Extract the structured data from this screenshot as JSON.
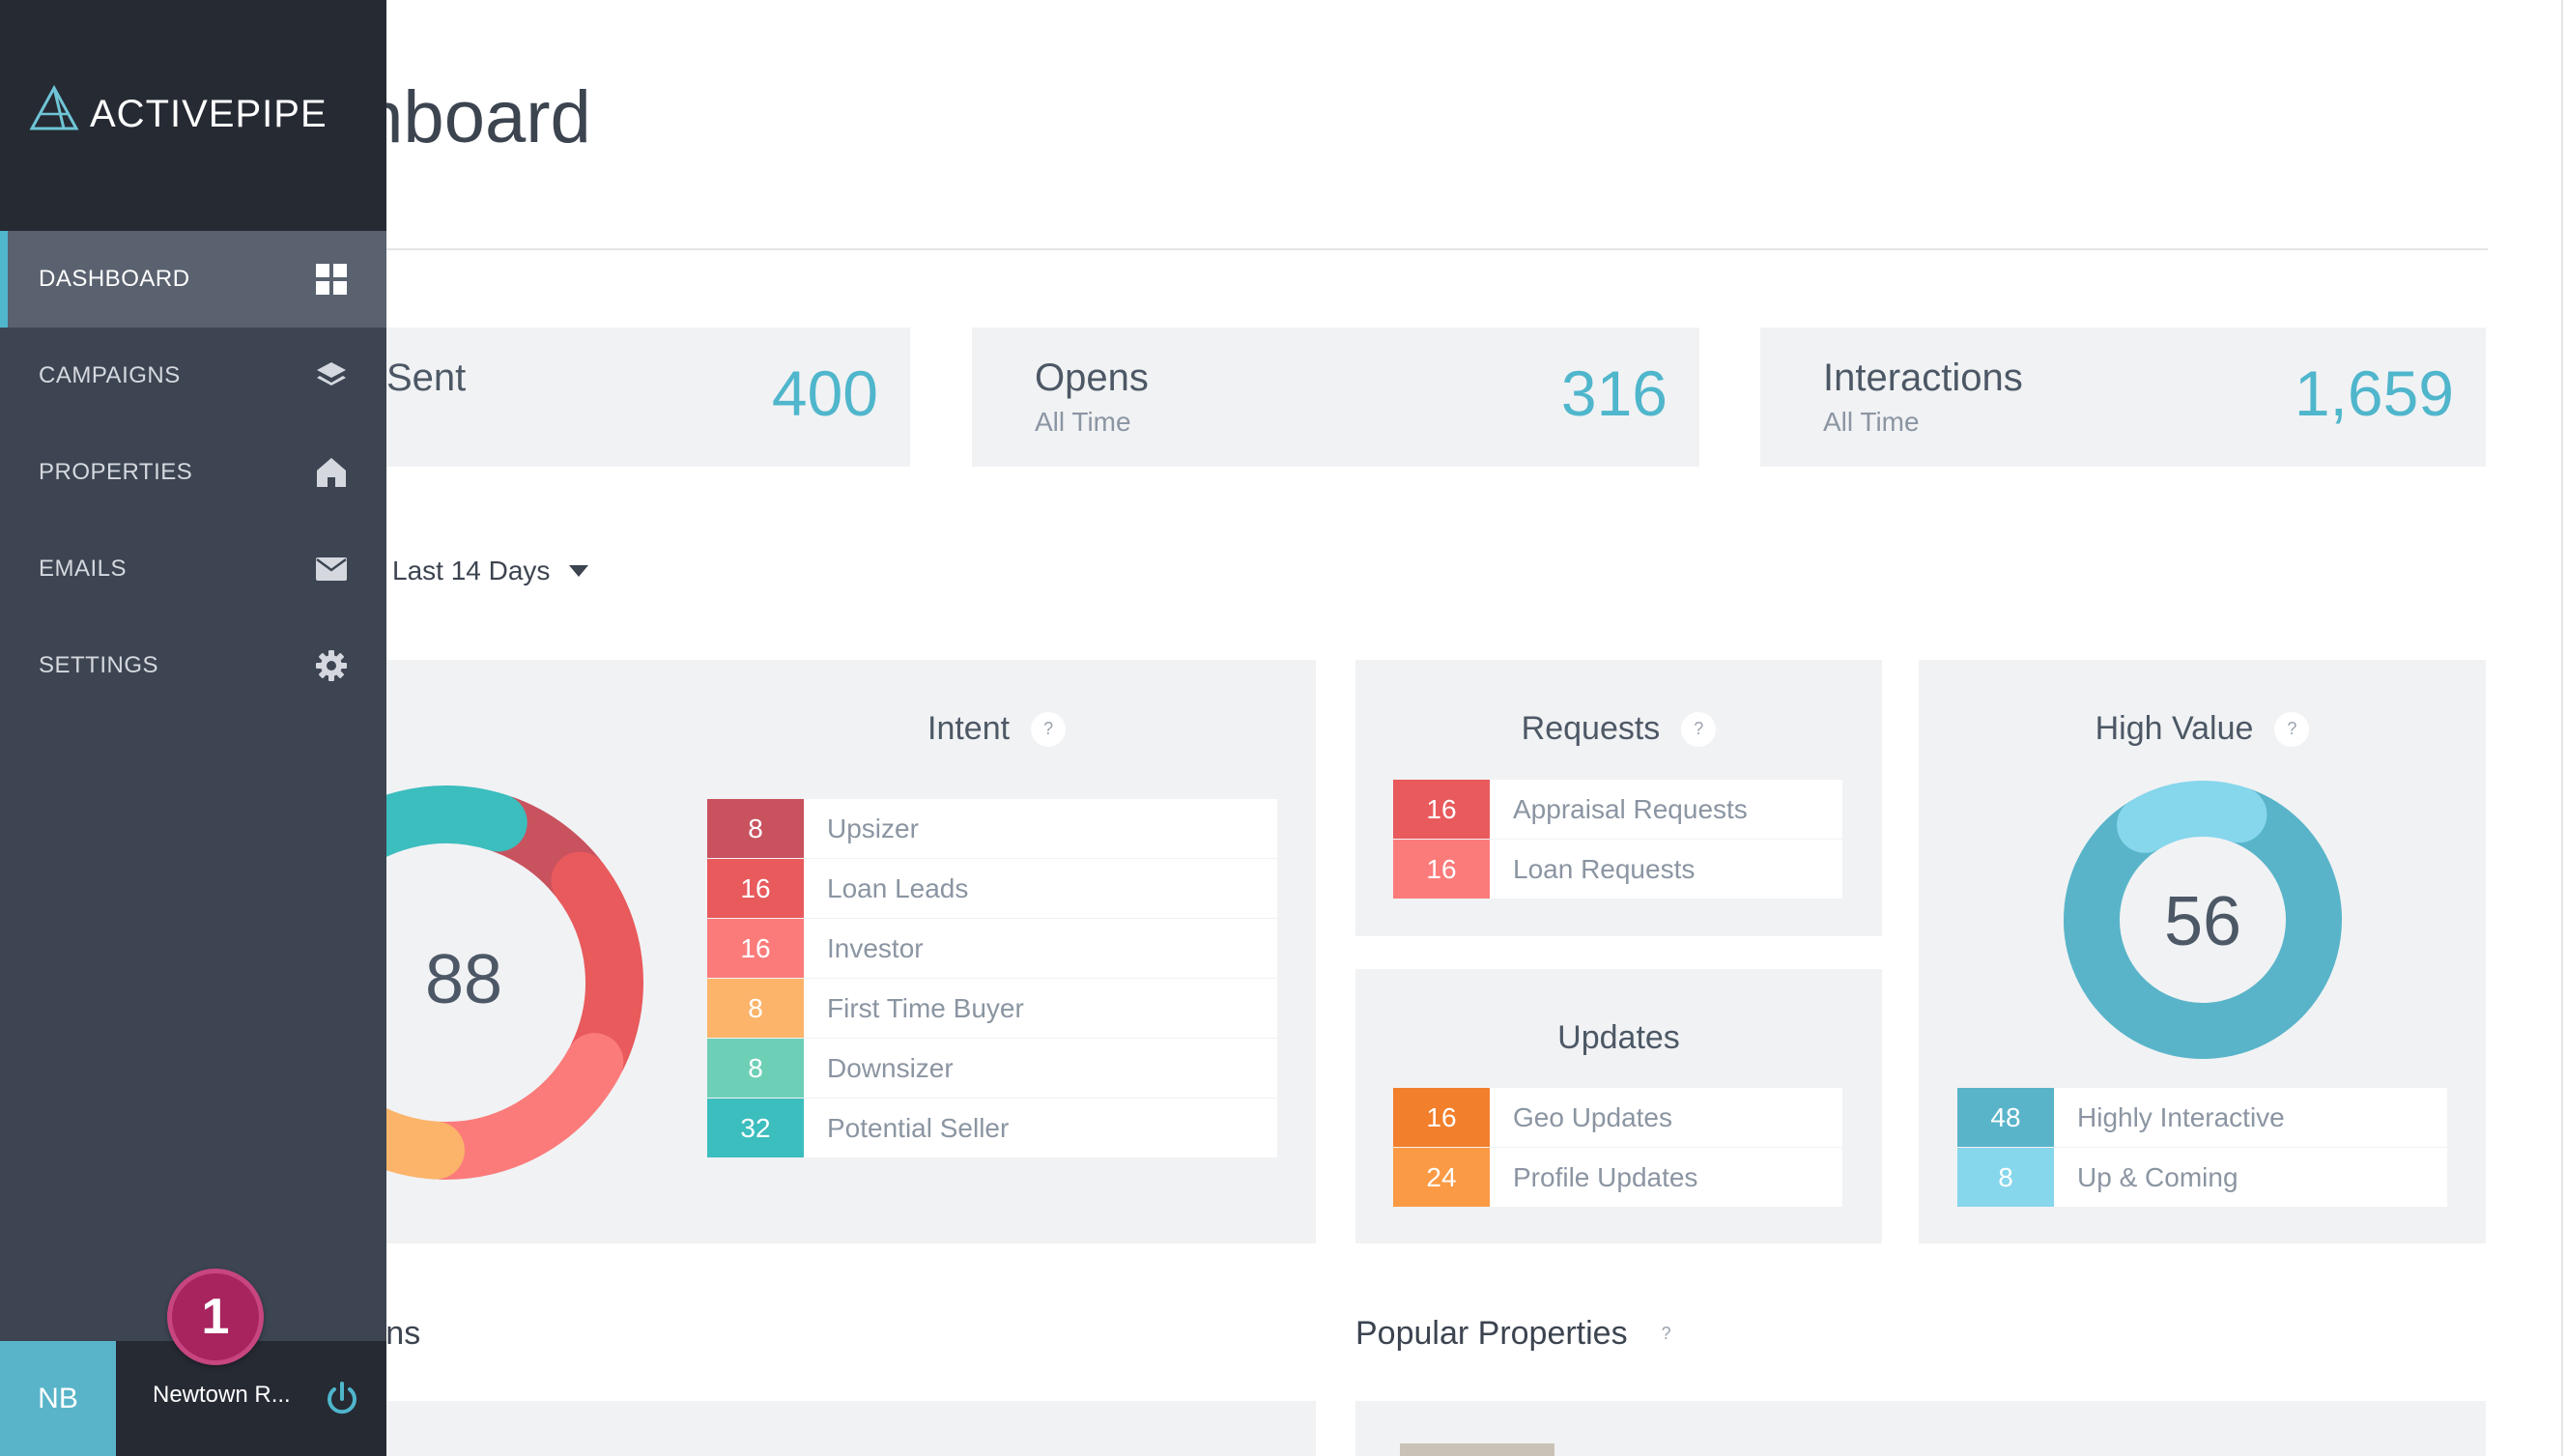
{
  "page": {
    "title": "Dashboard"
  },
  "brand": {
    "name": "ACTIVEPIPE"
  },
  "nav": [
    {
      "label": "DASHBOARD",
      "icon": "grid-icon",
      "active": true
    },
    {
      "label": "CAMPAIGNS",
      "icon": "layers-icon"
    },
    {
      "label": "PROPERTIES",
      "icon": "home-icon"
    },
    {
      "label": "EMAILS",
      "icon": "envelope-icon"
    },
    {
      "label": "SETTINGS",
      "icon": "gear-icon"
    }
  ],
  "user": {
    "initials": "NB",
    "account": "Newtown R...",
    "notifications": "1"
  },
  "stats": [
    {
      "label": "Sent",
      "value": "400"
    },
    {
      "label": "Opens",
      "sub": "All Time",
      "value": "316"
    },
    {
      "label": "Interactions",
      "sub": "All Time",
      "value": "1,659"
    }
  ],
  "filter": {
    "range": "Last 14 Days"
  },
  "intent": {
    "title": "Intent",
    "help": "?",
    "total": "88",
    "items": [
      {
        "count": "8",
        "label": "Upsizer",
        "color": "#c9525f"
      },
      {
        "count": "16",
        "label": "Loan Leads",
        "color": "#e85a5c"
      },
      {
        "count": "16",
        "label": "Investor",
        "color": "#fb7b7b"
      },
      {
        "count": "8",
        "label": "First Time Buyer",
        "color": "#fbb46a"
      },
      {
        "count": "8",
        "label": "Downsizer",
        "color": "#6ecfb7"
      },
      {
        "count": "32",
        "label": "Potential Seller",
        "color": "#3cbdbe"
      }
    ]
  },
  "requests": {
    "title": "Requests",
    "help": "?",
    "items": [
      {
        "count": "16",
        "label": "Appraisal Requests",
        "color": "#e85a5c"
      },
      {
        "count": "16",
        "label": "Loan Requests",
        "color": "#fb7b7b"
      }
    ]
  },
  "updates": {
    "title": "Updates",
    "items": [
      {
        "count": "16",
        "label": "Geo Updates",
        "color": "#f27f2c"
      },
      {
        "count": "24",
        "label": "Profile Updates",
        "color": "#fb9a45"
      }
    ]
  },
  "high_value": {
    "title": "High Value",
    "help": "?",
    "total": "56",
    "items": [
      {
        "count": "48",
        "label": "Highly Interactive",
        "color": "#59b4c9"
      },
      {
        "count": "8",
        "label": "Up & Coming",
        "color": "#86d6ec"
      }
    ]
  },
  "sections": {
    "notifications": "Notifications",
    "popular": "Popular Properties",
    "popular_help": "?"
  }
}
